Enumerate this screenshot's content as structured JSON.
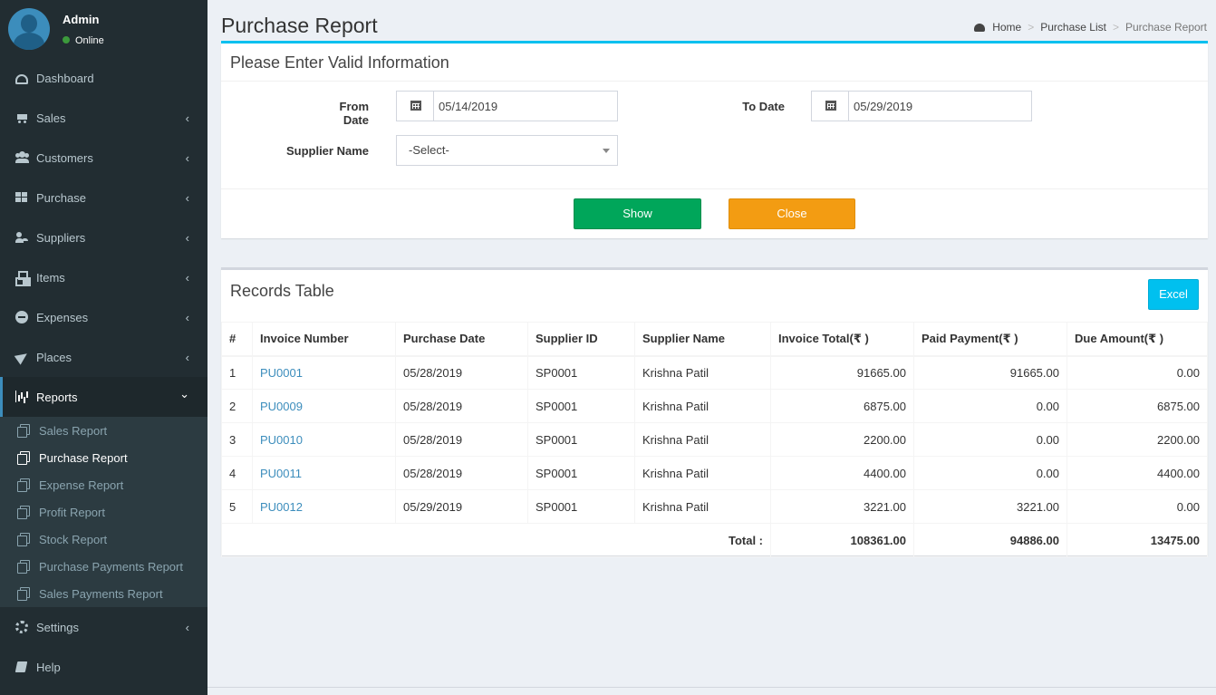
{
  "user": {
    "name": "Admin",
    "status": "Online"
  },
  "menu": [
    {
      "label": "Dashboard",
      "icon": "dashboard-icon",
      "chevron": ""
    },
    {
      "label": "Sales",
      "icon": "cart-icon",
      "chevron": "‹"
    },
    {
      "label": "Customers",
      "icon": "users-icon",
      "chevron": "‹"
    },
    {
      "label": "Purchase",
      "icon": "grid-icon",
      "chevron": "‹"
    },
    {
      "label": "Suppliers",
      "icon": "user-plus-icon",
      "chevron": "‹"
    },
    {
      "label": "Items",
      "icon": "cubes-icon",
      "chevron": "‹"
    },
    {
      "label": "Expenses",
      "icon": "minus-circle-icon",
      "chevron": "‹"
    },
    {
      "label": "Places",
      "icon": "paper-plane-icon",
      "chevron": "‹"
    },
    {
      "label": "Reports",
      "icon": "bar-chart-icon",
      "chevron": "⌄"
    },
    {
      "label": "Settings",
      "icon": "gears-icon",
      "chevron": "‹"
    },
    {
      "label": "Help",
      "icon": "book-icon",
      "chevron": ""
    }
  ],
  "submenu": [
    "Sales Report",
    "Purchase Report",
    "Expense Report",
    "Profit Report",
    "Stock Report",
    "Purchase Payments Report",
    "Sales Payments Report"
  ],
  "page": {
    "title": "Purchase Report"
  },
  "breadcrumb": {
    "home": "Home",
    "parent": "Purchase List",
    "current": "Purchase Report"
  },
  "form": {
    "title": "Please Enter Valid Information",
    "from_label": "From Date",
    "from_value": "05/14/2019",
    "to_label": "To Date",
    "to_value": "05/29/2019",
    "supplier_label": "Supplier Name",
    "supplier_value": "-Select-",
    "show_label": "Show",
    "close_label": "Close"
  },
  "records": {
    "title": "Records Table",
    "excel_label": "Excel",
    "headers": [
      "#",
      "Invoice Number",
      "Purchase Date",
      "Supplier ID",
      "Supplier Name",
      "Invoice Total(₹ )",
      "Paid Payment(₹ )",
      "Due Amount(₹ )"
    ],
    "rows": [
      [
        "1",
        "PU0001",
        "05/28/2019",
        "SP0001",
        "Krishna Patil",
        "91665.00",
        "91665.00",
        "0.00"
      ],
      [
        "2",
        "PU0009",
        "05/28/2019",
        "SP0001",
        "Krishna Patil",
        "6875.00",
        "0.00",
        "6875.00"
      ],
      [
        "3",
        "PU0010",
        "05/28/2019",
        "SP0001",
        "Krishna Patil",
        "2200.00",
        "0.00",
        "2200.00"
      ],
      [
        "4",
        "PU0011",
        "05/28/2019",
        "SP0001",
        "Krishna Patil",
        "4400.00",
        "0.00",
        "4400.00"
      ],
      [
        "5",
        "PU0012",
        "05/29/2019",
        "SP0001",
        "Krishna Patil",
        "3221.00",
        "3221.00",
        "0.00"
      ]
    ],
    "total_label": "Total :",
    "totals": [
      "108361.00",
      "94886.00",
      "13475.00"
    ]
  },
  "colors": {
    "sidebar": "#222d32",
    "accent": "#3c8dbc",
    "show": "#00a65a",
    "close": "#f39c12",
    "excel": "#00c0ef"
  }
}
